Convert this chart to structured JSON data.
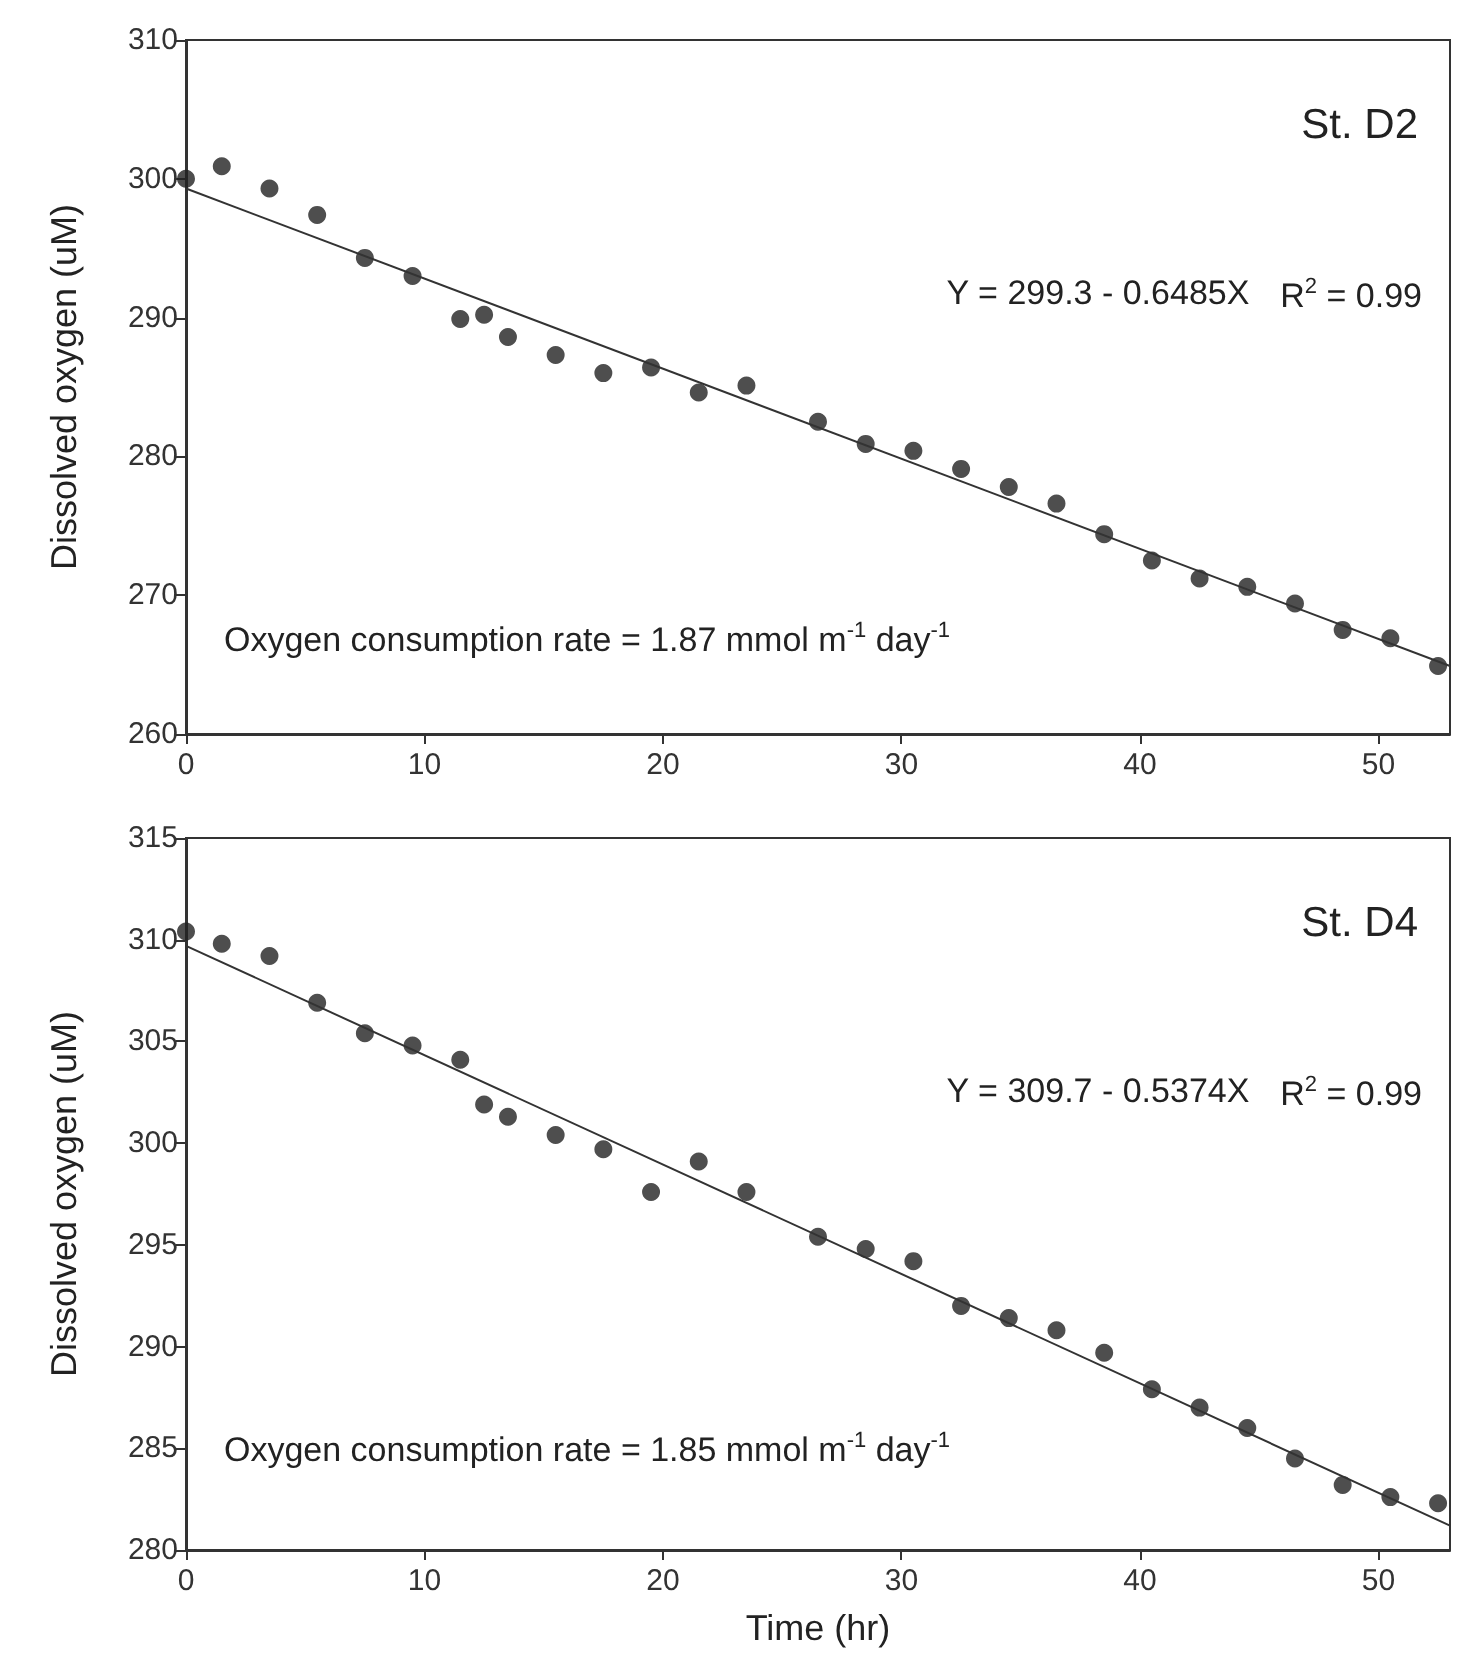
{
  "chart_data": [
    {
      "type": "scatter",
      "ylabel": "Dissolved oxygen (uM)",
      "xlim": [
        0,
        53
      ],
      "xticks": [
        0,
        10,
        20,
        30,
        40,
        50
      ],
      "ylim": [
        260,
        310
      ],
      "yticks": [
        260,
        270,
        280,
        290,
        300,
        310
      ],
      "grid": false,
      "marker": "circle",
      "annotations": [
        "St. D2",
        "Y = 299.3 - 0.6485X",
        "R$^{2}$ = 0.99",
        "Oxygen consumption rate = 1.87 mmol m$^{-1}$ day$^{-1}$"
      ],
      "series": [
        {
          "color": "#222222",
          "x": [
            0,
            1.5,
            3.5,
            5.5,
            7.5,
            9.5,
            11.5,
            12.5,
            13.5,
            15.5,
            17.5,
            19.5,
            21.5,
            23.5,
            26.5,
            28.5,
            30.5,
            32.5,
            34.5,
            36.5,
            38.5,
            40.5,
            42.5,
            44.5,
            46.5,
            48.5,
            50.5,
            52.5
          ],
          "values": [
            300.0,
            300.9,
            299.3,
            297.4,
            294.3,
            293.0,
            289.9,
            290.2,
            288.6,
            287.3,
            286.0,
            286.4,
            284.6,
            285.1,
            282.5,
            280.9,
            280.4,
            279.1,
            277.8,
            276.6,
            274.4,
            272.5,
            271.2,
            270.6,
            269.4,
            267.5,
            266.9,
            264.9
          ]
        },
        {
          "type": "line",
          "color": "#333333",
          "marker": "none",
          "line_style": "solid",
          "x": [
            0,
            53
          ],
          "values": [
            299.3,
            264.9
          ]
        }
      ]
    },
    {
      "type": "scatter",
      "xlabel": "Time (hr)",
      "ylabel": "Dissolved oxygen (uM)",
      "xlim": [
        0,
        53
      ],
      "xticks": [
        0,
        10,
        20,
        30,
        40,
        50
      ],
      "ylim": [
        280,
        315
      ],
      "yticks": [
        280,
        285,
        290,
        295,
        300,
        305,
        310,
        315
      ],
      "grid": false,
      "marker": "circle",
      "annotations": [
        "St. D4",
        "Y = 309.7 - 0.5374X",
        "R$^{2}$ = 0.99",
        "Oxygen consumption rate = 1.85 mmol m$^{-1}$ day$^{-1}$"
      ],
      "series": [
        {
          "color": "#222222",
          "x": [
            0,
            1.5,
            3.5,
            5.5,
            7.5,
            9.5,
            11.5,
            12.5,
            13.5,
            15.5,
            17.5,
            19.5,
            21.5,
            23.5,
            26.5,
            28.5,
            30.5,
            32.5,
            34.5,
            36.5,
            38.5,
            40.5,
            42.5,
            44.5,
            46.5,
            48.5,
            50.5,
            52.5
          ],
          "values": [
            310.4,
            309.8,
            309.2,
            306.9,
            305.4,
            304.8,
            304.1,
            301.9,
            301.3,
            300.4,
            299.7,
            297.6,
            299.1,
            297.6,
            295.4,
            294.8,
            294.2,
            292.0,
            291.4,
            290.8,
            289.7,
            287.9,
            287.0,
            286.0,
            284.5,
            283.2,
            282.6,
            282.3
          ]
        },
        {
          "type": "line",
          "color": "#333333",
          "marker": "none",
          "line_style": "solid",
          "x": [
            0,
            53
          ],
          "values": [
            309.7,
            281.2
          ]
        }
      ]
    }
  ]
}
